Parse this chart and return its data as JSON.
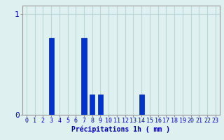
{
  "hours": [
    0,
    1,
    2,
    3,
    4,
    5,
    6,
    7,
    8,
    9,
    10,
    11,
    12,
    13,
    14,
    15,
    16,
    17,
    18,
    19,
    20,
    21,
    22,
    23
  ],
  "values": [
    0,
    0,
    0,
    0.76,
    0,
    0,
    0,
    0.76,
    0.2,
    0.2,
    0,
    0,
    0,
    0,
    0.2,
    0,
    0,
    0,
    0,
    0,
    0,
    0,
    0,
    0
  ],
  "bar_color": "#0033cc",
  "bar_edge_color": "#0022aa",
  "background_color": "#dff0f0",
  "grid_color": "#b8d8d8",
  "axis_color": "#999999",
  "text_color": "#0000bb",
  "xlabel": "Précipitations 1h ( mm )",
  "ylim": [
    0,
    1.08
  ],
  "yticks": [
    0,
    1
  ],
  "label_fontsize": 7,
  "tick_fontsize": 6
}
